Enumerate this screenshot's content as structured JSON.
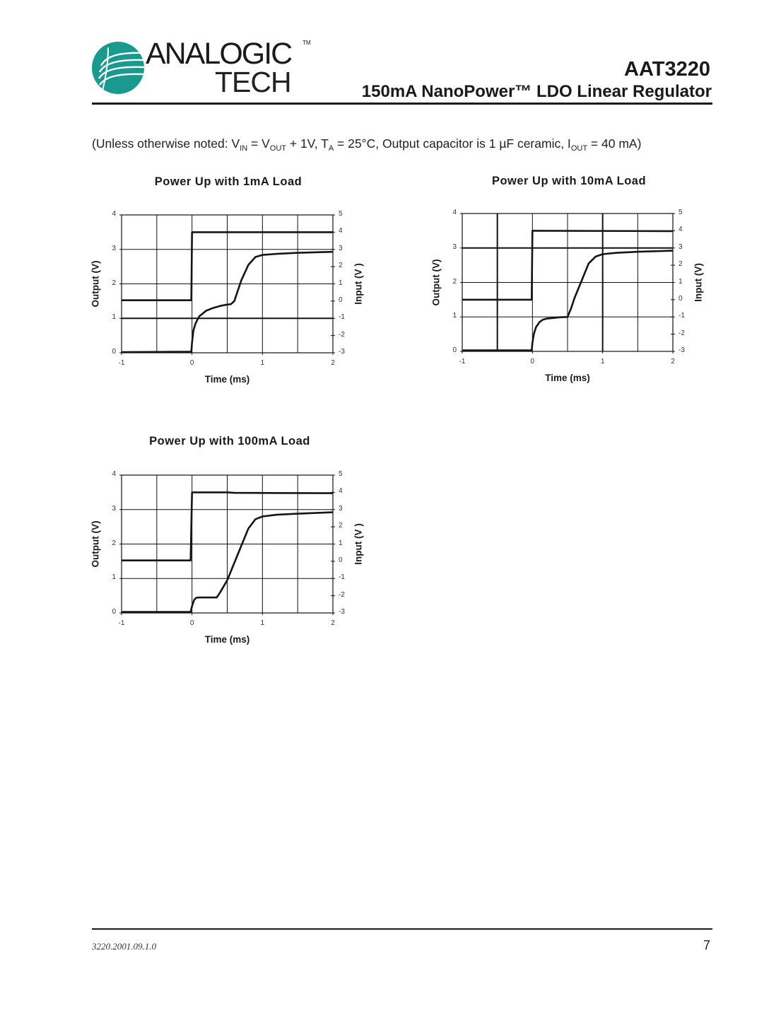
{
  "header": {
    "logo": {
      "line1": "ANALOGIC",
      "line2": "TECH",
      "trademark": "TM",
      "emblem_color": "#1a9a8e"
    },
    "part_number": "AAT3220",
    "subtitle": "150mA NanoPower™ LDO Linear Regulator"
  },
  "conditions": {
    "prefix": "(Unless otherwise noted: V",
    "vin_sub": "IN",
    "eq1": " = V",
    "vout_sub": "OUT",
    "mid": " + 1V, T",
    "ta_sub": "A",
    "rest": " = 25°C, Output capacitor is 1 µF ceramic, I",
    "iout_sub": "OUT",
    "suffix": " = 40 mA)"
  },
  "footer": {
    "doc_id": "3220.2001.09.1.0",
    "page_number": "7"
  },
  "chart_data": [
    {
      "type": "line",
      "title": "Power Up with 1mA Load",
      "xlabel": "Time (ms)",
      "ylabel": "Output (V)",
      "y2label": "Input (V )",
      "xlim": [
        -1,
        2
      ],
      "ylim": [
        0,
        4
      ],
      "y2lim": [
        -3,
        5
      ],
      "x_ticks": [
        "-1",
        "0",
        "1",
        "2"
      ],
      "y_ticks": [
        "0",
        "1",
        "2",
        "3",
        "4"
      ],
      "y2_ticks": [
        "-3",
        "-2",
        "-1",
        "0",
        "1",
        "2",
        "3",
        "4",
        "5"
      ],
      "grid": true,
      "series": [
        {
          "name": "Input",
          "axis": "right",
          "x": [
            -1,
            -0.01,
            0.0,
            0.02,
            2.0
          ],
          "values": [
            0.05,
            0.05,
            4.0,
            4.0,
            4.0
          ]
        },
        {
          "name": "Output",
          "axis": "left",
          "x": [
            -1,
            -0.01,
            0.0,
            0.02,
            0.05,
            0.1,
            0.2,
            0.3,
            0.4,
            0.5,
            0.55,
            0.6,
            0.65,
            0.7,
            0.8,
            0.9,
            1.0,
            1.2,
            1.5,
            2.0
          ],
          "values": [
            0.02,
            0.03,
            0.3,
            0.65,
            0.85,
            1.05,
            1.22,
            1.3,
            1.36,
            1.4,
            1.41,
            1.5,
            1.8,
            2.1,
            2.55,
            2.78,
            2.84,
            2.87,
            2.9,
            2.93
          ]
        }
      ]
    },
    {
      "type": "line",
      "title": "Power Up with 10mA Load",
      "xlabel": "Time (ms)",
      "ylabel": "Output (V)",
      "y2label": "Input  (V)",
      "xlim": [
        -1,
        2
      ],
      "ylim": [
        0,
        4
      ],
      "y2lim": [
        -3,
        5
      ],
      "x_ticks": [
        "-1",
        "0",
        "1",
        "2"
      ],
      "y_ticks": [
        "0",
        "1",
        "2",
        "3",
        "4"
      ],
      "y2_ticks": [
        "-3",
        "-2",
        "-1",
        "0",
        "1",
        "2",
        "3",
        "4",
        "5"
      ],
      "grid": true,
      "series": [
        {
          "name": "Input",
          "axis": "right",
          "x": [
            -1,
            -0.01,
            0.0,
            0.02,
            2.0
          ],
          "values": [
            0.0,
            0.0,
            4.0,
            4.0,
            3.98
          ]
        },
        {
          "name": "Output",
          "axis": "left",
          "x": [
            -1,
            -0.01,
            0.0,
            0.02,
            0.05,
            0.1,
            0.15,
            0.2,
            0.3,
            0.4,
            0.5,
            0.55,
            0.6,
            0.7,
            0.8,
            0.9,
            1.0,
            1.2,
            1.5,
            2.0
          ],
          "values": [
            0.03,
            0.03,
            0.25,
            0.5,
            0.7,
            0.85,
            0.92,
            0.95,
            0.97,
            0.99,
            1.0,
            1.25,
            1.55,
            2.05,
            2.55,
            2.75,
            2.82,
            2.86,
            2.89,
            2.92
          ]
        }
      ]
    },
    {
      "type": "line",
      "title": "Power Up with 100mA Load",
      "xlabel": "Time (ms)",
      "ylabel": "Output (V)",
      "y2label": "Input (V )",
      "xlim": [
        -1,
        2
      ],
      "ylim": [
        0,
        4
      ],
      "y2lim": [
        -3,
        5
      ],
      "x_ticks": [
        "-1",
        "0",
        "1",
        "2"
      ],
      "y_ticks": [
        "0",
        "1",
        "2",
        "3",
        "4"
      ],
      "y2_ticks": [
        "-3",
        "-2",
        "-1",
        "0",
        "1",
        "2",
        "3",
        "4",
        "5"
      ],
      "grid": true,
      "series": [
        {
          "name": "Input",
          "axis": "right",
          "x": [
            -1,
            -0.02,
            0.0,
            0.5,
            0.6,
            2.0
          ],
          "values": [
            0.05,
            0.05,
            4.0,
            4.0,
            3.97,
            3.95
          ]
        },
        {
          "name": "Output",
          "axis": "left",
          "x": [
            -1,
            -0.02,
            0.0,
            0.03,
            0.06,
            0.1,
            0.2,
            0.35,
            0.4,
            0.5,
            0.6,
            0.7,
            0.8,
            0.9,
            1.0,
            1.2,
            1.5,
            2.0
          ],
          "values": [
            0.03,
            0.03,
            0.2,
            0.38,
            0.44,
            0.45,
            0.45,
            0.45,
            0.6,
            0.95,
            1.45,
            1.95,
            2.45,
            2.72,
            2.8,
            2.85,
            2.88,
            2.92
          ]
        }
      ]
    }
  ]
}
